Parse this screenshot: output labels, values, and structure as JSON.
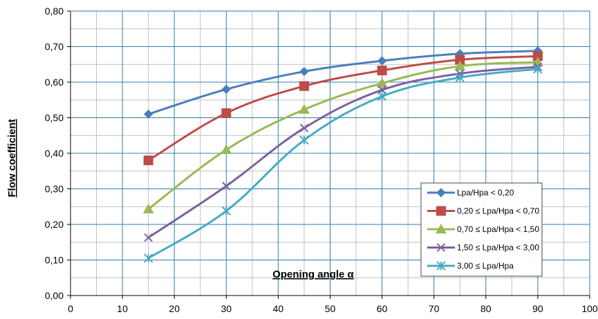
{
  "chart_data": {
    "type": "line",
    "xlabel": "Opening angle α",
    "ylabel": "Flow coefficient",
    "xlim": [
      0,
      100
    ],
    "ylim": [
      0,
      0.8
    ],
    "x_ticks": [
      "0",
      "10",
      "20",
      "30",
      "40",
      "50",
      "60",
      "70",
      "80",
      "90",
      "100"
    ],
    "y_ticks": [
      "0,00",
      "0,10",
      "0,20",
      "0,30",
      "0,40",
      "0,50",
      "0,60",
      "0,70",
      "0,80"
    ],
    "grid": true,
    "legend_position": "bottom-right",
    "x": [
      15,
      30,
      45,
      60,
      75,
      90
    ],
    "series": [
      {
        "name": "Lpa/Hpa < 0,20",
        "color": "#4a7ebb",
        "marker": "diamond",
        "values": [
          0.51,
          0.58,
          0.63,
          0.66,
          0.68,
          0.688
        ]
      },
      {
        "name": "0,20 ≤ Lpa/Hpa < 0,70",
        "color": "#be4b48",
        "marker": "square",
        "values": [
          0.38,
          0.513,
          0.589,
          0.633,
          0.663,
          0.673
        ]
      },
      {
        "name": "0,70 ≤ Lpa/Hpa < 1,50",
        "color": "#98b954",
        "marker": "triangle",
        "values": [
          0.243,
          0.41,
          0.523,
          0.597,
          0.645,
          0.656
        ]
      },
      {
        "name": "1,50 ≤ Lpa/Hpa < 3,00",
        "color": "#7d60a0",
        "marker": "x",
        "values": [
          0.163,
          0.308,
          0.471,
          0.578,
          0.624,
          0.643
        ]
      },
      {
        "name": "3,00 ≤ Lpa/Hpa",
        "color": "#46aac5",
        "marker": "star",
        "values": [
          0.105,
          0.238,
          0.437,
          0.56,
          0.613,
          0.637
        ]
      }
    ]
  }
}
